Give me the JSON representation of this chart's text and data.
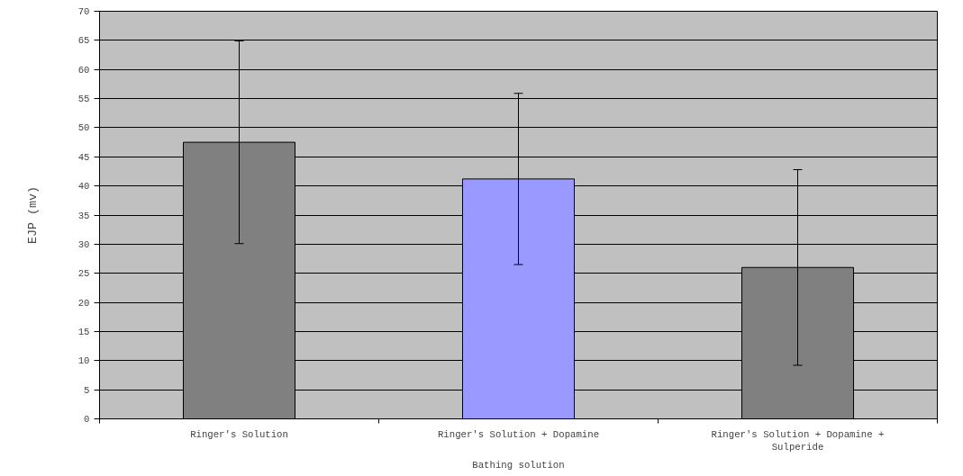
{
  "chart_data": {
    "type": "bar",
    "xlabel": "Bathing solution",
    "ylabel": "EJP (mv)",
    "categories": [
      "Ringer's Solution",
      "Ringer's Solution + Dopamine",
      "Ringer's Solution + Dopamine + Sulperide"
    ],
    "values": [
      47.5,
      41.2,
      26.0
    ],
    "colors": [
      "#808080",
      "#9999ff",
      "#808080"
    ],
    "errors": [
      17.4,
      14.7,
      16.8
    ],
    "ylim": [
      0,
      70
    ],
    "yticks": [
      0,
      5,
      10,
      15,
      20,
      25,
      30,
      35,
      40,
      45,
      50,
      55,
      60,
      65,
      70
    ],
    "grid": "y"
  }
}
